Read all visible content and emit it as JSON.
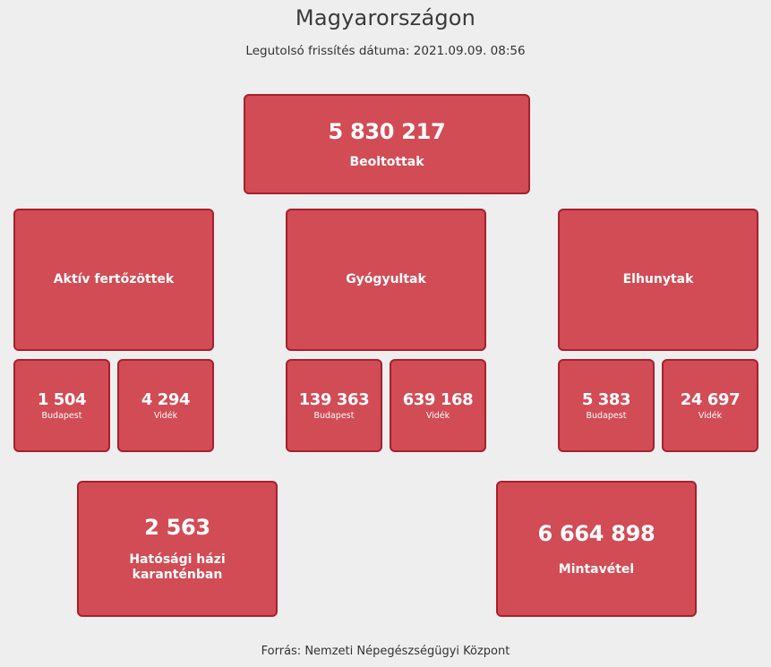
{
  "header": {
    "title": "Magyarországon",
    "updated_label": "Legutolsó frissítés dátuma: 2021.09.09. 08:56"
  },
  "vaccinated": {
    "value": "5 830 217",
    "label": "Beoltottak"
  },
  "active": {
    "label": "Aktív fertőzöttek",
    "budapest": {
      "value": "1 504",
      "label": "Budapest"
    },
    "rural": {
      "value": "4 294",
      "label": "Vidék"
    }
  },
  "recovered": {
    "label": "Gyógyultak",
    "budapest": {
      "value": "139 363",
      "label": "Budapest"
    },
    "rural": {
      "value": "639 168",
      "label": "Vidék"
    }
  },
  "deceased": {
    "label": "Elhunytak",
    "budapest": {
      "value": "5 383",
      "label": "Budapest"
    },
    "rural": {
      "value": "24 697",
      "label": "Vidék"
    }
  },
  "quarantine": {
    "value": "2 563",
    "label_line1": "Hatósági házi",
    "label_line2": "karanténban"
  },
  "sampling": {
    "value": "6 664 898",
    "label": "Mintavétel"
  },
  "footer": {
    "source": "Forrás: Nemzeti Népegészségügyi Központ"
  },
  "colors": {
    "box_fill": "#d24c55",
    "box_border": "#a7202b",
    "background": "#eeeeee"
  }
}
